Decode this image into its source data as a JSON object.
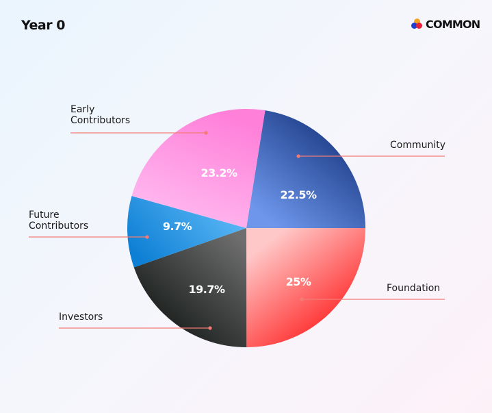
{
  "header": {
    "title": "Year 0"
  },
  "logo": {
    "text": "COMMON",
    "icon": "three-dots-logo-icon"
  },
  "chart_data": {
    "type": "pie",
    "title": "Year 0",
    "slices": [
      {
        "label": "Community",
        "value": 22.5,
        "display": "22.5%",
        "color_start": "#6e97ec",
        "color_end": "#0c2a72"
      },
      {
        "label": "Foundation",
        "value": 25,
        "display": "25%",
        "color_start": "#ffc8c8",
        "color_end": "#ff0d0d"
      },
      {
        "label": "Investors",
        "value": 19.7,
        "display": "19.7%",
        "color_start": "#6e6e6e",
        "color_end": "#0d1310"
      },
      {
        "label": "Future Contributors",
        "value": 9.7,
        "display": "9.7%",
        "color_start": "#5bb7f5",
        "color_end": "#0d7fd4"
      },
      {
        "label": "Early Contributors",
        "value": 23.2,
        "display": "23.2%",
        "color_start": "#ffbaf0",
        "color_end": "#ff80d9"
      }
    ],
    "leader_line_color": "#f27b76"
  }
}
